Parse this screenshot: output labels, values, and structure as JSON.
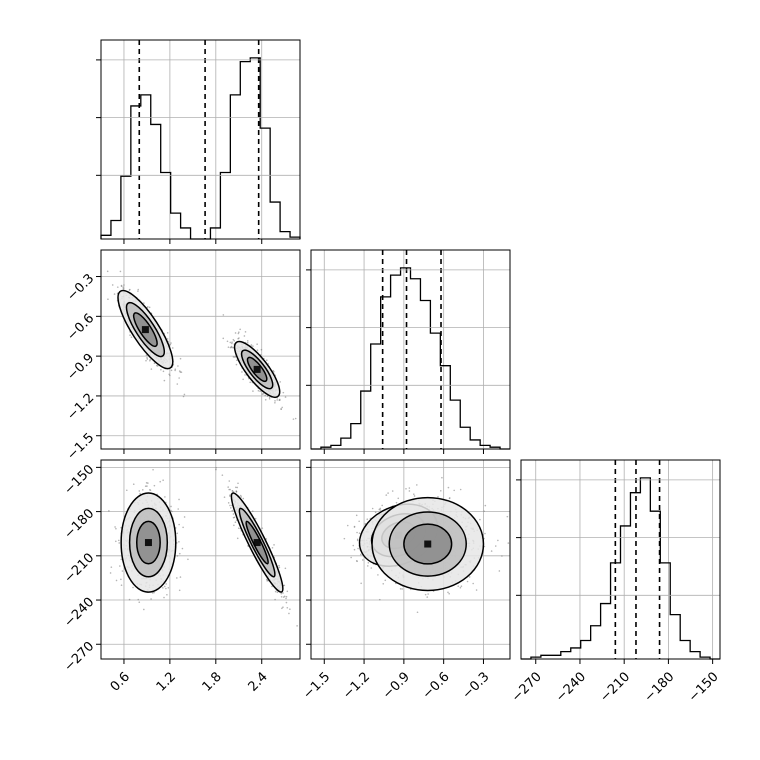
{
  "chart_data": {
    "type": "corner",
    "grid": true,
    "parameters": [
      {
        "range": [
          0.3,
          2.9
        ],
        "ticks": [
          0.6,
          1.2,
          1.8,
          2.4
        ],
        "tick_labels": [
          "0.6",
          "1.2",
          "1.8",
          "2.4"
        ]
      },
      {
        "range": [
          -1.6,
          -0.1
        ],
        "ticks": [
          -1.5,
          -1.2,
          -0.9,
          -0.6,
          -0.3
        ],
        "tick_labels": [
          "−1.5",
          "−1.2",
          "−0.9",
          "−0.6",
          "−0.3"
        ]
      },
      {
        "range": [
          -280,
          -145
        ],
        "ticks": [
          -270,
          -240,
          -210,
          -180,
          -150
        ],
        "tick_labels": [
          "−270",
          "−240",
          "−210",
          "−180",
          "−150"
        ]
      }
    ],
    "marginals": [
      {
        "edges": [
          0.3,
          0.43,
          0.56,
          0.69,
          0.82,
          0.95,
          1.08,
          1.21,
          1.34,
          1.47,
          1.6,
          1.73,
          1.86,
          1.99,
          2.12,
          2.25,
          2.38,
          2.51,
          2.64,
          2.77,
          2.9
        ],
        "counts": [
          2,
          10,
          34,
          72,
          78,
          62,
          36,
          14,
          6,
          0,
          0,
          6,
          36,
          78,
          96,
          98,
          60,
          20,
          4,
          1
        ],
        "quantiles": [
          0.8,
          1.66,
          2.36
        ]
      },
      {
        "edges": [
          -1.6,
          -1.525,
          -1.45,
          -1.375,
          -1.3,
          -1.225,
          -1.15,
          -1.075,
          -1.0,
          -0.925,
          -0.85,
          -0.775,
          -0.7,
          -0.625,
          -0.55,
          -0.475,
          -0.4,
          -0.325,
          -0.25,
          -0.175,
          -0.1
        ],
        "counts": [
          0,
          1,
          2,
          6,
          14,
          32,
          58,
          84,
          96,
          100,
          94,
          82,
          64,
          46,
          27,
          12,
          5,
          2,
          1,
          0
        ],
        "quantiles": [
          -1.06,
          -0.88,
          -0.62
        ]
      },
      {
        "edges": [
          -280,
          -273.25,
          -266.5,
          -259.75,
          -253,
          -246.25,
          -239.5,
          -232.75,
          -226,
          -219.25,
          -212.5,
          -205.75,
          -199,
          -192.25,
          -185.5,
          -178.75,
          -172,
          -165.25,
          -158.5,
          -151.75,
          -145
        ],
        "counts": [
          0,
          1,
          2,
          2,
          4,
          6,
          10,
          18,
          30,
          52,
          72,
          90,
          98,
          80,
          52,
          24,
          10,
          4,
          1,
          0
        ],
        "quantiles": [
          -216,
          -202,
          -186
        ]
      }
    ],
    "joint": [
      {
        "x": 0,
        "y": 1,
        "modes": [
          {
            "cx": 0.88,
            "cy": -0.7,
            "sx": 0.17,
            "sy": 0.14,
            "rho": -0.82,
            "weight": 0.42
          },
          {
            "cx": 2.34,
            "cy": -1.0,
            "sx": 0.14,
            "sy": 0.1,
            "rho": -0.8,
            "weight": 0.58
          }
        ]
      },
      {
        "x": 0,
        "y": 2,
        "modes": [
          {
            "cx": 0.92,
            "cy": -201,
            "sx": 0.17,
            "sy": 16,
            "rho": 0.0,
            "weight": 0.42
          },
          {
            "cx": 2.34,
            "cy": -201,
            "sx": 0.16,
            "sy": 16,
            "rho": -0.93,
            "weight": 0.58
          }
        ]
      },
      {
        "x": 1,
        "y": 2,
        "modes": [
          {
            "cx": -0.94,
            "cy": -196,
            "sx": 0.14,
            "sy": 10,
            "rho": 0.25,
            "weight": 0.55
          },
          {
            "cx": -0.72,
            "cy": -202,
            "sx": 0.2,
            "sy": 15,
            "rho": 0.0,
            "weight": 0.45
          }
        ]
      }
    ]
  }
}
